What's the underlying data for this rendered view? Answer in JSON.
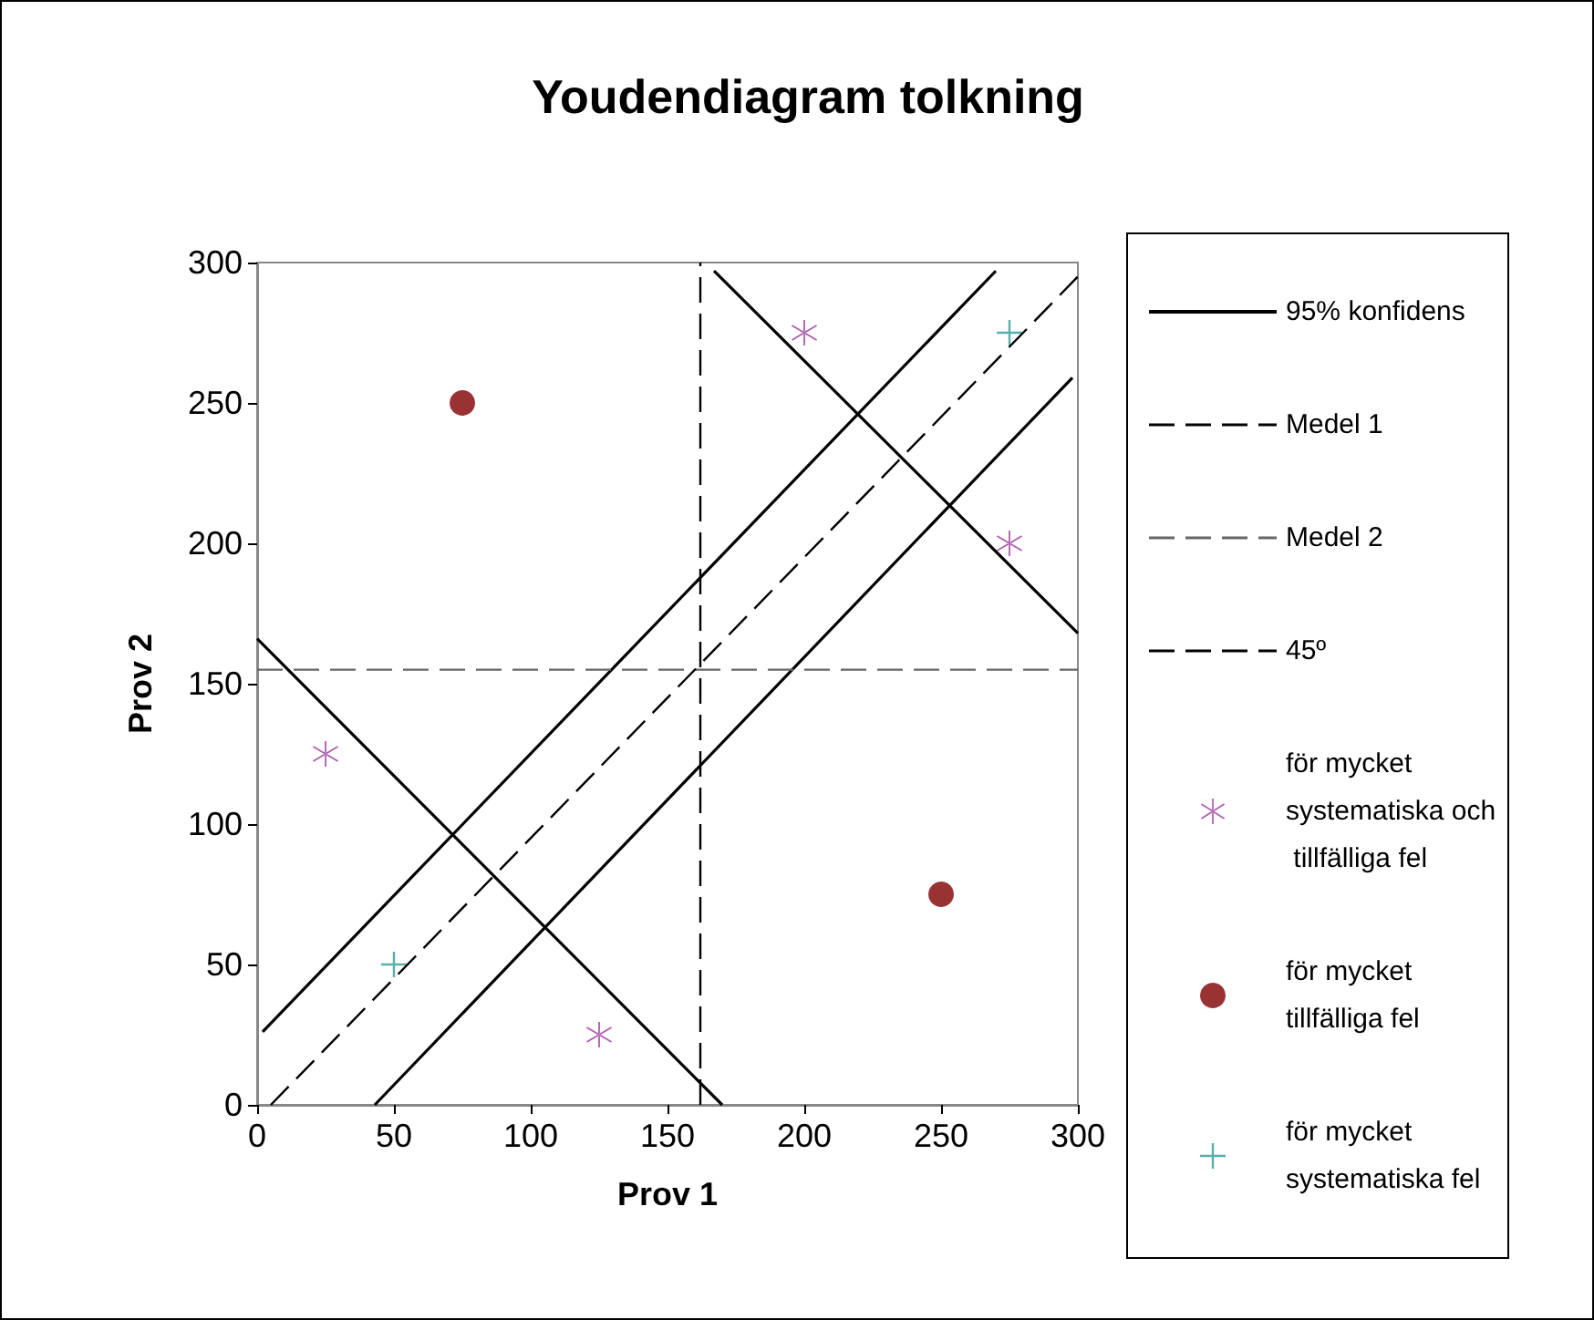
{
  "chart_data": {
    "type": "scatter",
    "title": "Youdendiagram tolkning",
    "xlabel": "Prov 1",
    "ylabel": "Prov 2",
    "xlim": [
      0,
      300
    ],
    "ylim": [
      0,
      300
    ],
    "xticks": [
      0,
      50,
      100,
      150,
      200,
      250,
      300
    ],
    "yticks": [
      0,
      50,
      100,
      150,
      200,
      250,
      300
    ],
    "grid": false,
    "legend": "right",
    "series": [
      {
        "name": "95% konfidens",
        "type": "line",
        "color": "#000000",
        "line_style": "solid",
        "marker": "none",
        "x": [
          2,
          270,
          null,
          298,
          43,
          null,
          0,
          170,
          null,
          167,
          300
        ],
        "values": [
          26,
          297,
          null,
          259,
          0,
          null,
          166,
          0,
          null,
          297,
          168
        ]
      },
      {
        "name": "Medel 1",
        "type": "line",
        "color": "#000000",
        "line_style": "dashed",
        "marker": "none",
        "x": [
          162,
          162
        ],
        "values": [
          0,
          300
        ]
      },
      {
        "name": "Medel 2",
        "type": "line",
        "color": "#666666",
        "line_style": "dashed",
        "marker": "none",
        "x": [
          0,
          300
        ],
        "values": [
          155,
          155
        ]
      },
      {
        "name": "45º",
        "type": "line",
        "color": "#000000",
        "line_style": "dashed",
        "marker": "none",
        "x": [
          5,
          300
        ],
        "values": [
          0,
          295
        ]
      },
      {
        "name": "för mycket systematiska och tillfälliga fel",
        "type": "scatter",
        "color": "#993399",
        "x": [
          25,
          125,
          200,
          275
        ],
        "values": [
          125,
          25,
          275,
          200
        ]
      },
      {
        "name": "för mycket tillfälliga fel",
        "type": "scatter",
        "color": "#800000",
        "marker": "circle",
        "x": [
          75,
          250
        ],
        "values": [
          250,
          75
        ]
      },
      {
        "name": "för mycket systematiska fel",
        "type": "scatter",
        "color": "#339999",
        "marker": "cross",
        "x": [
          50,
          275
        ],
        "values": [
          50,
          275
        ]
      }
    ]
  }
}
